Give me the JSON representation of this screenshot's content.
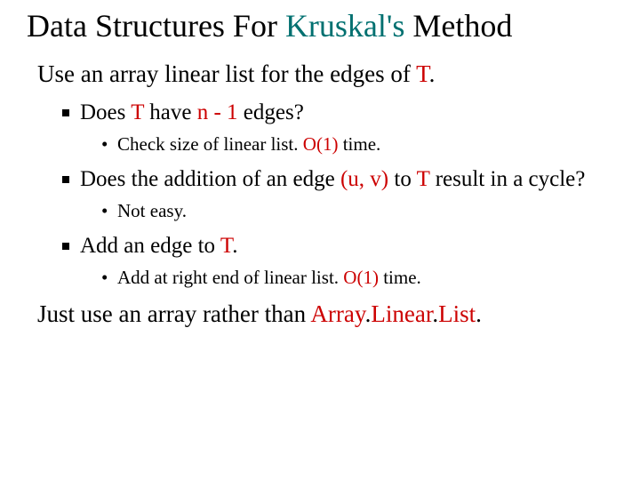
{
  "title_a": "Data Structures For ",
  "title_b": "Kruskal's",
  "title_c": " Method",
  "line1_a": "Use an array linear list for the edges of ",
  "line1_b": "T",
  "line1_c": ".",
  "b1_a": "Does ",
  "b1_b": "T",
  "b1_c": " have ",
  "b1_d": "n - 1",
  "b1_e": " edges?",
  "b1s_a": "Check size of linear list. ",
  "b1s_b": "O(1)",
  "b1s_c": " time.",
  "b2_a": "Does the addition of an edge ",
  "b2_b": "(u, v)",
  "b2_c": " to ",
  "b2_d": "T",
  "b2_e": " result in a cycle?",
  "b2s": "Not easy.",
  "b3_a": "Add an edge to ",
  "b3_b": "T",
  "b3_c": ".",
  "b3s_a": "Add at right end of linear list. ",
  "b3s_b": "O(1)",
  "b3s_c": " time.",
  "last_a": "Just use an array rather than ",
  "last_b": "Array",
  "last_c": ".",
  "last_d": "Linear",
  "last_e": ".",
  "last_f": "List",
  "last_g": ".",
  "colors": {
    "accent": "#cc0000",
    "subtle": "#007070",
    "text": "#000000",
    "bg": "#ffffff"
  }
}
